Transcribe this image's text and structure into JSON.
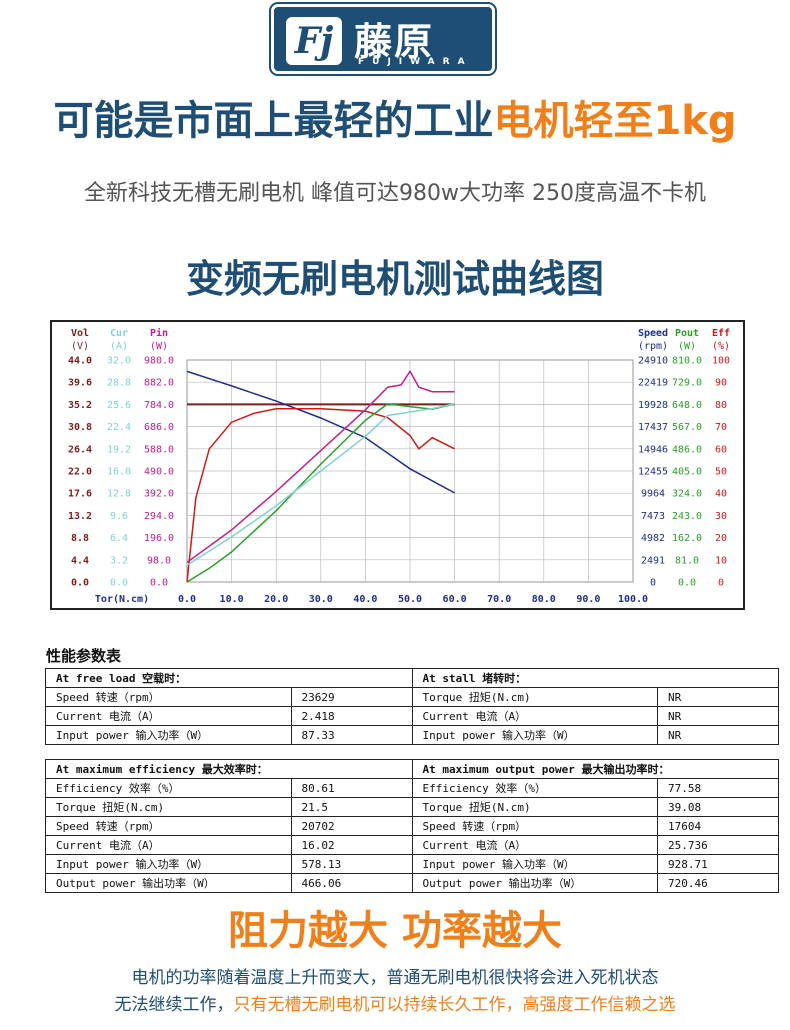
{
  "brand": {
    "mark": "Fj",
    "name_cn": "藤原",
    "name_en": "FUJIWARA"
  },
  "headline": {
    "part1": "可能是市面上最轻的工业",
    "part2": "电机轻至1kg"
  },
  "subheadline": "全新科技无槽无刷电机 峰值可达980w大功率 250度高温不卡机",
  "chart_title": "变频无刷电机测试曲线图",
  "colors": {
    "brand_blue": "#1f4e74",
    "accent_orange": "#f07f1a"
  },
  "chart_data": {
    "type": "line",
    "xlabel": "Tor(N.cm)",
    "x_ticks": [
      "0.0",
      "10.0",
      "20.0",
      "30.0",
      "40.0",
      "50.0",
      "60.0",
      "70.0",
      "80.0",
      "90.0",
      "100.0"
    ],
    "xlim": [
      0,
      100
    ],
    "left_axes": [
      {
        "head": "Vol",
        "unit": "(V)",
        "color": "#7a1f1f",
        "ticks": [
          "44.0",
          "39.6",
          "35.2",
          "30.8",
          "26.4",
          "22.0",
          "17.6",
          "13.2",
          "8.8",
          "4.4",
          "0.0"
        ]
      },
      {
        "head": "Cur",
        "unit": "(A)",
        "color": "#7fd3d3",
        "ticks": [
          "32.0",
          "28.8",
          "25.6",
          "22.4",
          "19.2",
          "16.0",
          "12.8",
          "9.6",
          "6.4",
          "3.2",
          "0.0"
        ]
      },
      {
        "head": "Pin",
        "unit": "(W)",
        "color": "#c0208a",
        "ticks": [
          "980.0",
          "882.0",
          "784.0",
          "686.0",
          "588.0",
          "490.0",
          "392.0",
          "294.0",
          "196.0",
          "98.0",
          "0.0"
        ]
      }
    ],
    "right_axes": [
      {
        "head": "Speed",
        "unit": "(rpm)",
        "color": "#1f2f8a",
        "ticks": [
          "24910",
          "22419",
          "19928",
          "17437",
          "14946",
          "12455",
          "9964",
          "7473",
          "4982",
          "2491",
          "0"
        ]
      },
      {
        "head": "Pout",
        "unit": "(W)",
        "color": "#2aa02a",
        "ticks": [
          "810.0",
          "729.0",
          "648.0",
          "567.0",
          "486.0",
          "405.0",
          "324.0",
          "243.0",
          "162.0",
          "81.0",
          "0.0"
        ]
      },
      {
        "head": "Eff",
        "unit": "(%)",
        "color": "#d01818",
        "ticks": [
          "100",
          "90",
          "80",
          "70",
          "60",
          "50",
          "40",
          "30",
          "20",
          "10",
          "0"
        ]
      }
    ],
    "series": [
      {
        "color": "#7a1f1f",
        "x": [
          0,
          60
        ],
        "y": [
          35.2,
          35.2
        ]
      },
      {
        "color": "#1f2f8a",
        "x": [
          0,
          10,
          20,
          30,
          40,
          50,
          60
        ],
        "y": [
          23629,
          22000,
          20300,
          18400,
          16200,
          12700,
          10000
        ]
      },
      {
        "color": "#d01818",
        "x": [
          0,
          2,
          5,
          10,
          15,
          20,
          30,
          40,
          45,
          50,
          52,
          55,
          60
        ],
        "y": [
          0,
          38,
          60,
          72,
          76,
          78,
          78,
          77,
          74,
          66,
          60,
          65,
          60
        ]
      },
      {
        "color": "#c0208a",
        "x": [
          0,
          10,
          20,
          30,
          40,
          45,
          48,
          50,
          52,
          55,
          60
        ],
        "y": [
          87,
          230,
          400,
          580,
          760,
          860,
          870,
          930,
          860,
          840,
          840
        ]
      },
      {
        "color": "#2aa02a",
        "x": [
          0,
          5,
          10,
          20,
          30,
          40,
          45,
          50,
          55,
          60
        ],
        "y": [
          0,
          50,
          110,
          260,
          430,
          590,
          650,
          640,
          630,
          650
        ]
      },
      {
        "color": "#7fd3d3",
        "x": [
          0,
          10,
          20,
          30,
          40,
          45,
          50,
          55,
          60
        ],
        "y": [
          2.4,
          6.5,
          11,
          16,
          21,
          24,
          24.5,
          25,
          25.7
        ]
      }
    ]
  },
  "table": {
    "title": "性能参数表",
    "free_load": {
      "header": "At free load 空载时：",
      "rows": [
        {
          "label": "Speed 转速（rpm）",
          "value": "23629"
        },
        {
          "label": "Current 电流（A）",
          "value": "2.418"
        },
        {
          "label": "Input power 输入功率（W）",
          "value": "87.33"
        }
      ]
    },
    "stall": {
      "header": "At stall 堵转时：",
      "rows": [
        {
          "label": "Torque 扭矩(N.cm)",
          "value": "NR"
        },
        {
          "label": "Current 电流（A）",
          "value": "NR"
        },
        {
          "label": "Input power 输入功率（W）",
          "value": "NR"
        }
      ]
    },
    "max_efficiency": {
      "header": "At maximum efficiency 最大效率时：",
      "rows": [
        {
          "label": "Efficiency 效率（%）",
          "value": "80.61"
        },
        {
          "label": "Torque 扭矩(N.cm)",
          "value": "21.5"
        },
        {
          "label": "Speed 转速（rpm）",
          "value": "20702"
        },
        {
          "label": "Current 电流（A）",
          "value": "16.02"
        },
        {
          "label": "Input power 输入功率（W）",
          "value": "578.13"
        },
        {
          "label": "Output power 输出功率（W）",
          "value": "466.06"
        }
      ]
    },
    "max_output": {
      "header": "At maximum output power 最大输出功率时：",
      "rows": [
        {
          "label": "Efficiency 效率（%）",
          "value": "77.58"
        },
        {
          "label": "Torque 扭矩(N.cm)",
          "value": "39.08"
        },
        {
          "label": "Speed 转速（rpm）",
          "value": "17604"
        },
        {
          "label": "Current 电流（A）",
          "value": "25.736"
        },
        {
          "label": "Input power 输入功率（W）",
          "value": "928.71"
        },
        {
          "label": "Output power 输出功率（W）",
          "value": "720.46"
        }
      ]
    }
  },
  "slogan": "阻力越大 功率越大",
  "footer": {
    "line1": "电机的功率随着温度上升而变大，普通无刷电机很快将会进入死机状态",
    "line2_part1": "无法继续工作，",
    "line2_part2": "只有无槽无刷电机可以持续长久工作，高强度工作信赖之选"
  }
}
